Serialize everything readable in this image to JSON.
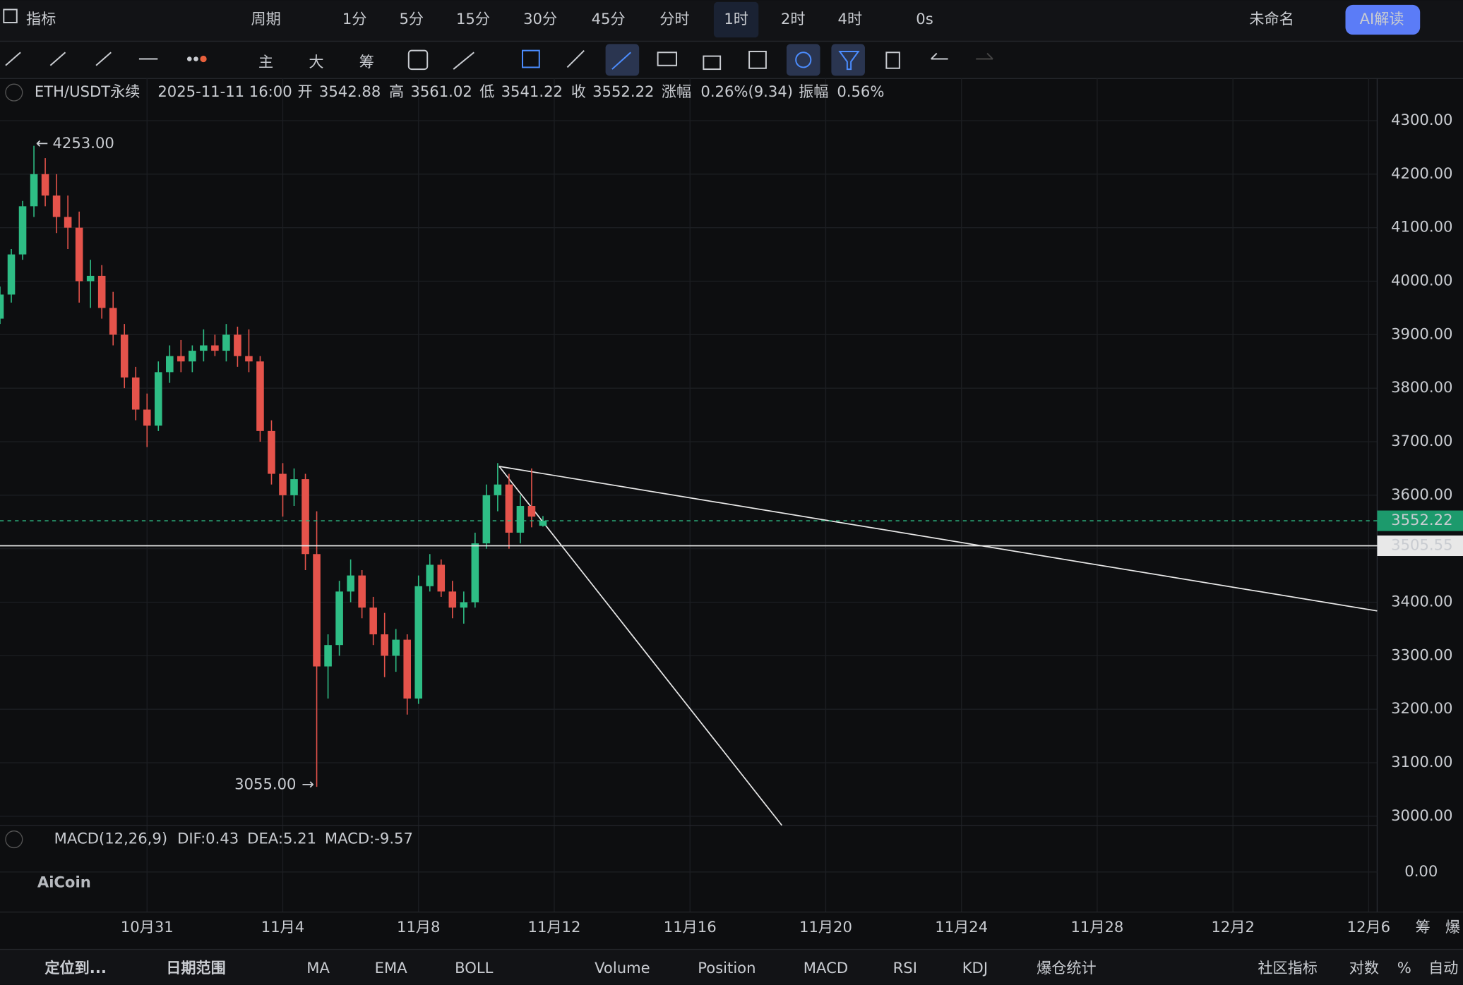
{
  "toolbar": {
    "indicator": "指标",
    "period": "周期",
    "intervals": [
      "1分",
      "5分",
      "15分",
      "30分",
      "45分",
      "分时",
      "1时",
      "2时",
      "4时"
    ],
    "countdown": "0s",
    "layout_name": "未命名",
    "ai": "AI解读"
  },
  "draw_toolbar": {
    "labels": [
      "主",
      "大",
      "筹"
    ]
  },
  "bottom_bar": {
    "locate": "定位到...",
    "date_range": "日期范围",
    "indicators": [
      "MA",
      "EMA",
      "BOLL",
      "Volume",
      "Position",
      "MACD",
      "RSI",
      "KDJ",
      "爆仓统计"
    ],
    "community": "社区指标",
    "log": "对数",
    "percent": "%",
    "auto": "自动"
  },
  "right_axis_footer": [
    "筹",
    "爆"
  ],
  "watermark": "AiCoin",
  "header": {
    "symbol": "ETH/USDT永续",
    "time": "2025-11-11 16:00",
    "open_label": "开",
    "open": "3542.88",
    "high_label": "高",
    "high": "3561.02",
    "low_label": "低",
    "low": "3541.22",
    "close_label": "收",
    "close": "3552.22",
    "change_label": "涨幅",
    "change": "0.26%(9.34)",
    "amplitude_label": "振幅",
    "amplitude": "0.56%"
  },
  "macd": {
    "title": "MACD(12,26,9)",
    "dif": "DIF:0.43",
    "dea": "DEA:5.21",
    "macd": "MACD:-9.57",
    "ylim": [
      -15,
      15
    ],
    "yticks": [
      {
        "value": 0,
        "label": "0.00"
      }
    ]
  },
  "chart_data": {
    "type": "candlestick",
    "up_color": "#2ebd85",
    "down_color": "#e5534b",
    "x": [
      "2025-10-26 16:00",
      "2025-10-27 00:00",
      "2025-10-27 08:00",
      "2025-10-27 16:00",
      "2025-10-28 00:00",
      "2025-10-28 08:00",
      "2025-10-28 16:00",
      "2025-10-29 00:00",
      "2025-10-29 08:00",
      "2025-10-29 16:00",
      "2025-10-30 00:00",
      "2025-10-30 08:00",
      "2025-10-30 16:00",
      "2025-10-31 00:00",
      "2025-10-31 08:00",
      "2025-10-31 16:00",
      "2025-11-01 00:00",
      "2025-11-01 08:00",
      "2025-11-01 16:00",
      "2025-11-02 00:00",
      "2025-11-02 08:00",
      "2025-11-02 16:00",
      "2025-11-03 00:00",
      "2025-11-03 08:00",
      "2025-11-03 16:00",
      "2025-11-04 00:00",
      "2025-11-04 08:00",
      "2025-11-04 16:00",
      "2025-11-05 00:00",
      "2025-11-05 08:00",
      "2025-11-05 16:00",
      "2025-11-06 00:00",
      "2025-11-06 08:00",
      "2025-11-06 16:00",
      "2025-11-07 00:00",
      "2025-11-07 08:00",
      "2025-11-07 16:00",
      "2025-11-08 00:00",
      "2025-11-08 08:00",
      "2025-11-08 16:00",
      "2025-11-09 00:00",
      "2025-11-09 08:00",
      "2025-11-09 16:00",
      "2025-11-10 00:00",
      "2025-11-10 08:00",
      "2025-11-10 16:00",
      "2025-11-11 00:00",
      "2025-11-11 08:00",
      "2025-11-11 16:00"
    ],
    "open": [
      3930,
      3975,
      4050,
      4140,
      4200,
      4160,
      4120,
      4100,
      4000,
      4010,
      3950,
      3900,
      3820,
      3760,
      3730,
      3830,
      3860,
      3850,
      3870,
      3880,
      3870,
      3900,
      3860,
      3850,
      3720,
      3640,
      3600,
      3630,
      3490,
      3280,
      3320,
      3420,
      3450,
      3390,
      3340,
      3300,
      3330,
      3220,
      3430,
      3470,
      3420,
      3390,
      3400,
      3510,
      3600,
      3620,
      3530,
      3580,
      3542.88
    ],
    "high": [
      3990,
      4060,
      4150,
      4253,
      4230,
      4200,
      4160,
      4130,
      4040,
      4030,
      3980,
      3920,
      3840,
      3790,
      3850,
      3880,
      3890,
      3880,
      3910,
      3900,
      3920,
      3915,
      3910,
      3860,
      3740,
      3660,
      3650,
      3640,
      3570,
      3340,
      3440,
      3480,
      3460,
      3410,
      3380,
      3350,
      3340,
      3450,
      3490,
      3480,
      3440,
      3420,
      3530,
      3620,
      3660,
      3640,
      3600,
      3650,
      3561.02
    ],
    "low": [
      3920,
      3960,
      4040,
      4120,
      4140,
      4090,
      4060,
      3960,
      3950,
      3930,
      3880,
      3800,
      3740,
      3690,
      3720,
      3810,
      3830,
      3830,
      3850,
      3860,
      3850,
      3840,
      3830,
      3700,
      3620,
      3560,
      3580,
      3460,
      3055,
      3220,
      3300,
      3400,
      3370,
      3320,
      3260,
      3270,
      3190,
      3210,
      3420,
      3410,
      3370,
      3360,
      3390,
      3500,
      3570,
      3500,
      3510,
      3540,
      3541.22
    ],
    "close": [
      3975,
      4050,
      4140,
      4200,
      4160,
      4120,
      4100,
      4000,
      4010,
      3950,
      3900,
      3820,
      3760,
      3730,
      3830,
      3860,
      3850,
      3870,
      3880,
      3870,
      3900,
      3860,
      3850,
      3720,
      3640,
      3600,
      3630,
      3490,
      3280,
      3320,
      3420,
      3450,
      3390,
      3340,
      3300,
      3330,
      3220,
      3430,
      3470,
      3420,
      3390,
      3400,
      3510,
      3600,
      3620,
      3530,
      3580,
      3560,
      3552.22
    ],
    "xlim": [
      "2025-10-26 16:00",
      "2025-12-06 06:00"
    ],
    "xticks": [
      {
        "value": "2025-10-31",
        "label": "10月31"
      },
      {
        "value": "2025-11-04",
        "label": "11月4"
      },
      {
        "value": "2025-11-08",
        "label": "11月8"
      },
      {
        "value": "2025-11-12",
        "label": "11月12"
      },
      {
        "value": "2025-11-16",
        "label": "11月16"
      },
      {
        "value": "2025-11-20",
        "label": "11月20"
      },
      {
        "value": "2025-11-24",
        "label": "11月24"
      },
      {
        "value": "2025-11-28",
        "label": "11月28"
      },
      {
        "value": "2025-12-02",
        "label": "12月2"
      },
      {
        "value": "2025-12-06",
        "label": "12月6"
      }
    ],
    "ylim": [
      2983,
      4377
    ],
    "yticks": [
      {
        "value": 3000,
        "label": "3000.00"
      },
      {
        "value": 3100,
        "label": "3100.00"
      },
      {
        "value": 3200,
        "label": "3200.00"
      },
      {
        "value": 3300,
        "label": "3300.00"
      },
      {
        "value": 3400,
        "label": "3400.00"
      },
      {
        "value": 3500,
        "label": "3500.00"
      },
      {
        "value": 3600,
        "label": "3600.00"
      },
      {
        "value": 3700,
        "label": "3700.00"
      },
      {
        "value": 3800,
        "label": "3800.00"
      },
      {
        "value": 3900,
        "label": "3900.00"
      },
      {
        "value": 4000,
        "label": "4000.00"
      },
      {
        "value": 4100,
        "label": "4100.00"
      },
      {
        "value": 4200,
        "label": "4200.00"
      },
      {
        "value": 4300,
        "label": "4300.00"
      }
    ],
    "grid": true,
    "max_mark": {
      "value": 4253,
      "label": "4253.00"
    },
    "min_mark": {
      "value": 3055,
      "label": "3055.00"
    },
    "last_price": 3552.22,
    "hline": 3505.55
  }
}
